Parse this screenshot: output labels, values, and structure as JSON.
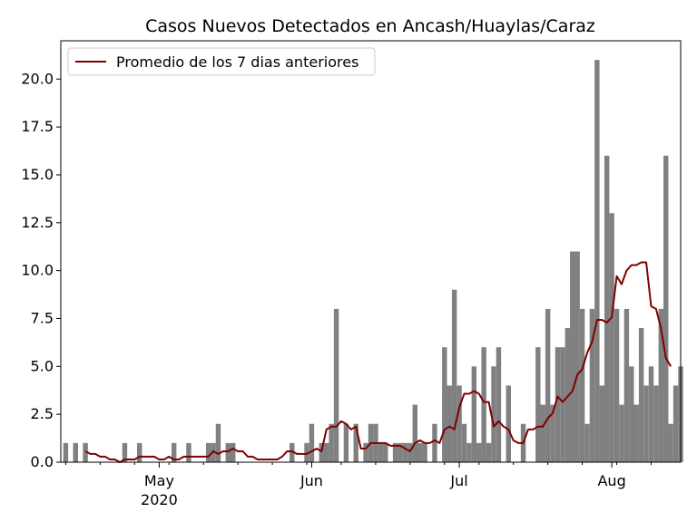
{
  "chart_data": {
    "type": "bar",
    "title": "Casos Nuevos Detectados en Ancash/Huaylas/Caraz",
    "xlabel": "",
    "ylabel": "",
    "x_start": "2020-04-11",
    "x_end": "2020-08-15",
    "ylim": [
      0,
      22
    ],
    "yticks": [
      "0.0",
      "2.5",
      "5.0",
      "7.5",
      "10.0",
      "12.5",
      "15.0",
      "17.5",
      "20.0"
    ],
    "xticks": [
      {
        "date": "2020-05-01",
        "label": "May",
        "sublabel": "2020"
      },
      {
        "date": "2020-06-01",
        "label": "Jun",
        "sublabel": ""
      },
      {
        "date": "2020-07-01",
        "label": "Jul",
        "sublabel": ""
      },
      {
        "date": "2020-08-01",
        "label": "Aug",
        "sublabel": ""
      }
    ],
    "grid": false,
    "legend_position": "upper-left",
    "bar_color": "#808080",
    "line_color": "#800000",
    "bar_series": {
      "name": "",
      "dates": [
        "2020-04-12",
        "2020-04-14",
        "2020-04-16",
        "2020-04-24",
        "2020-04-27",
        "2020-05-04",
        "2020-05-07",
        "2020-05-11",
        "2020-05-12",
        "2020-05-13",
        "2020-05-15",
        "2020-05-16",
        "2020-05-28",
        "2020-05-31",
        "2020-06-01",
        "2020-06-03",
        "2020-06-04",
        "2020-06-05",
        "2020-06-06",
        "2020-06-08",
        "2020-06-10",
        "2020-06-12",
        "2020-06-13",
        "2020-06-14",
        "2020-06-15",
        "2020-06-16",
        "2020-06-18",
        "2020-06-19",
        "2020-06-20",
        "2020-06-21",
        "2020-06-22",
        "2020-06-23",
        "2020-06-24",
        "2020-06-26",
        "2020-06-28",
        "2020-06-29",
        "2020-06-30",
        "2020-07-01",
        "2020-07-02",
        "2020-07-03",
        "2020-07-04",
        "2020-07-05",
        "2020-07-06",
        "2020-07-07",
        "2020-07-08",
        "2020-07-09",
        "2020-07-11",
        "2020-07-14",
        "2020-07-17",
        "2020-07-18",
        "2020-07-19",
        "2020-07-20",
        "2020-07-21",
        "2020-07-22",
        "2020-07-23",
        "2020-07-24",
        "2020-07-25",
        "2020-07-26",
        "2020-07-27",
        "2020-07-28",
        "2020-07-29",
        "2020-07-30",
        "2020-07-31",
        "2020-08-01",
        "2020-08-02",
        "2020-08-03",
        "2020-08-04",
        "2020-08-05",
        "2020-08-06",
        "2020-08-07",
        "2020-08-08",
        "2020-08-09",
        "2020-08-10",
        "2020-08-11",
        "2020-08-12",
        "2020-08-13",
        "2020-08-14",
        "2020-08-15"
      ],
      "values": [
        1,
        1,
        1,
        1,
        1,
        1,
        1,
        1,
        1,
        2,
        1,
        1,
        1,
        1,
        2,
        1,
        1,
        2,
        8,
        2,
        2,
        1,
        2,
        2,
        1,
        1,
        1,
        1,
        1,
        1,
        3,
        1,
        1,
        2,
        6,
        4,
        9,
        4,
        2,
        1,
        5,
        1,
        6,
        1,
        5,
        6,
        4,
        2,
        6,
        3,
        8,
        3,
        6,
        6,
        7,
        11,
        11,
        8,
        2,
        8,
        21,
        4,
        16,
        13,
        8,
        3,
        8,
        5,
        3,
        7,
        4,
        5,
        4,
        8,
        16,
        2,
        4,
        5
      ]
    },
    "line_series": {
      "name": "Promedio de los 7 dias anteriores",
      "start_date": "2020-04-16",
      "values": [
        0.57,
        0.43,
        0.43,
        0.29,
        0.29,
        0.14,
        0.14,
        0.0,
        0.14,
        0.14,
        0.14,
        0.29,
        0.29,
        0.29,
        0.29,
        0.14,
        0.14,
        0.29,
        0.14,
        0.14,
        0.29,
        0.29,
        0.29,
        0.29,
        0.29,
        0.29,
        0.57,
        0.43,
        0.57,
        0.57,
        0.71,
        0.57,
        0.57,
        0.29,
        0.29,
        0.14,
        0.14,
        0.14,
        0.14,
        0.14,
        0.29,
        0.57,
        0.57,
        0.43,
        0.43,
        0.43,
        0.57,
        0.71,
        0.57,
        1.71,
        1.86,
        1.86,
        2.14,
        2.0,
        1.71,
        1.86,
        0.71,
        0.71,
        1.0,
        1.0,
        1.0,
        1.0,
        0.86,
        0.86,
        0.86,
        0.71,
        0.57,
        1.0,
        1.14,
        1.0,
        1.0,
        1.14,
        1.0,
        1.71,
        1.86,
        1.71,
        2.86,
        3.57,
        3.57,
        3.71,
        3.57,
        3.14,
        3.14,
        1.86,
        2.14,
        1.86,
        1.71,
        1.14,
        1.0,
        1.0,
        1.71,
        1.71,
        1.86,
        1.86,
        2.29,
        2.57,
        3.43,
        3.14,
        3.43,
        3.71,
        4.57,
        4.86,
        5.71,
        6.29,
        7.43,
        7.43,
        7.29,
        7.57,
        9.71,
        9.29,
        10.0,
        10.29,
        10.29,
        10.43,
        10.43,
        8.14,
        8.0,
        7.0,
        5.43,
        5.0
      ]
    }
  }
}
